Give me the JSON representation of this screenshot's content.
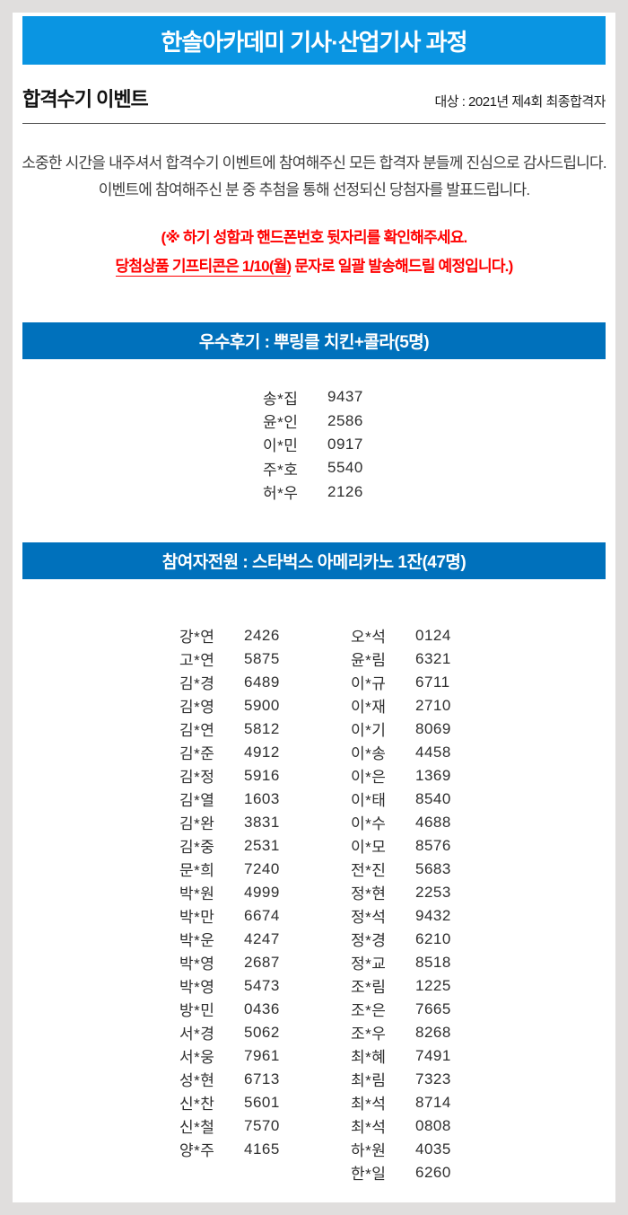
{
  "header": {
    "banner": "한솔아카데미 기사·산업기사 과정",
    "title": "합격수기 이벤트",
    "target": "대상 : 2021년 제4회 최종합격자"
  },
  "intro": {
    "line1": "소중한 시간을 내주셔서 합격수기 이벤트에 참여해주신 모든 합격자 분들께 진심으로 감사드립니다.",
    "line2": "이벤트에 참여해주신 분 중 추첨을 통해 선정되신 당첨자를 발표드립니다."
  },
  "notice": {
    "line1": "(※ 하기 성함과 핸드폰번호 뒷자리를 확인해주세요.",
    "line2_underlined": "당첨상품 기프티콘은 1/10(월)",
    "line2_rest": " 문자로 일괄 발송해드릴 예정입니다.)"
  },
  "sections": {
    "excellent": {
      "heading": "우수후기 : 뿌링클 치킨+콜라(5명)",
      "winners": [
        {
          "name": "송*집",
          "digits": "9437"
        },
        {
          "name": "윤*인",
          "digits": "2586"
        },
        {
          "name": "이*민",
          "digits": "0917"
        },
        {
          "name": "주*호",
          "digits": "5540"
        },
        {
          "name": "허*우",
          "digits": "2126"
        }
      ]
    },
    "all": {
      "heading": "참여자전원 : 스타벅스 아메리카노 1잔(47명)",
      "left": [
        {
          "name": "강*연",
          "digits": "2426"
        },
        {
          "name": "고*연",
          "digits": "5875"
        },
        {
          "name": "김*경",
          "digits": "6489"
        },
        {
          "name": "김*영",
          "digits": "5900"
        },
        {
          "name": "김*연",
          "digits": "5812"
        },
        {
          "name": "김*준",
          "digits": "4912"
        },
        {
          "name": "김*정",
          "digits": "5916"
        },
        {
          "name": "김*열",
          "digits": "1603"
        },
        {
          "name": "김*완",
          "digits": "3831"
        },
        {
          "name": "김*중",
          "digits": "2531"
        },
        {
          "name": "문*희",
          "digits": "7240"
        },
        {
          "name": "박*원",
          "digits": "4999"
        },
        {
          "name": "박*만",
          "digits": "6674"
        },
        {
          "name": "박*운",
          "digits": "4247"
        },
        {
          "name": "박*영",
          "digits": "2687"
        },
        {
          "name": "박*영",
          "digits": "5473"
        },
        {
          "name": "방*민",
          "digits": "0436"
        },
        {
          "name": "서*경",
          "digits": "5062"
        },
        {
          "name": "서*웅",
          "digits": "7961"
        },
        {
          "name": "성*현",
          "digits": "6713"
        },
        {
          "name": "신*찬",
          "digits": "5601"
        },
        {
          "name": "신*철",
          "digits": "7570"
        },
        {
          "name": "양*주",
          "digits": "4165"
        }
      ],
      "right": [
        {
          "name": "오*석",
          "digits": "0124"
        },
        {
          "name": "윤*림",
          "digits": "6321"
        },
        {
          "name": "이*규",
          "digits": "6711"
        },
        {
          "name": "이*재",
          "digits": "2710"
        },
        {
          "name": "이*기",
          "digits": "8069"
        },
        {
          "name": "이*송",
          "digits": "4458"
        },
        {
          "name": "이*은",
          "digits": "1369"
        },
        {
          "name": "이*태",
          "digits": "8540"
        },
        {
          "name": "이*수",
          "digits": "4688"
        },
        {
          "name": "이*모",
          "digits": "8576"
        },
        {
          "name": "전*진",
          "digits": "5683"
        },
        {
          "name": "정*현",
          "digits": "2253"
        },
        {
          "name": "정*석",
          "digits": "9432"
        },
        {
          "name": "정*경",
          "digits": "6210"
        },
        {
          "name": "정*교",
          "digits": "8518"
        },
        {
          "name": "조*림",
          "digits": "1225"
        },
        {
          "name": "조*은",
          "digits": "7665"
        },
        {
          "name": "조*우",
          "digits": "8268"
        },
        {
          "name": "최*혜",
          "digits": "7491"
        },
        {
          "name": "최*림",
          "digits": "7323"
        },
        {
          "name": "최*석",
          "digits": "8714"
        },
        {
          "name": "최*석",
          "digits": "0808"
        },
        {
          "name": "하*원",
          "digits": "4035"
        },
        {
          "name": "한*일",
          "digits": "6260"
        }
      ]
    }
  },
  "colors": {
    "top_banner_blue": "#0a95e2",
    "section_banner_blue": "#0071bc",
    "notice_red": "#ff0000",
    "page_border_gray": "#e0dedd"
  }
}
